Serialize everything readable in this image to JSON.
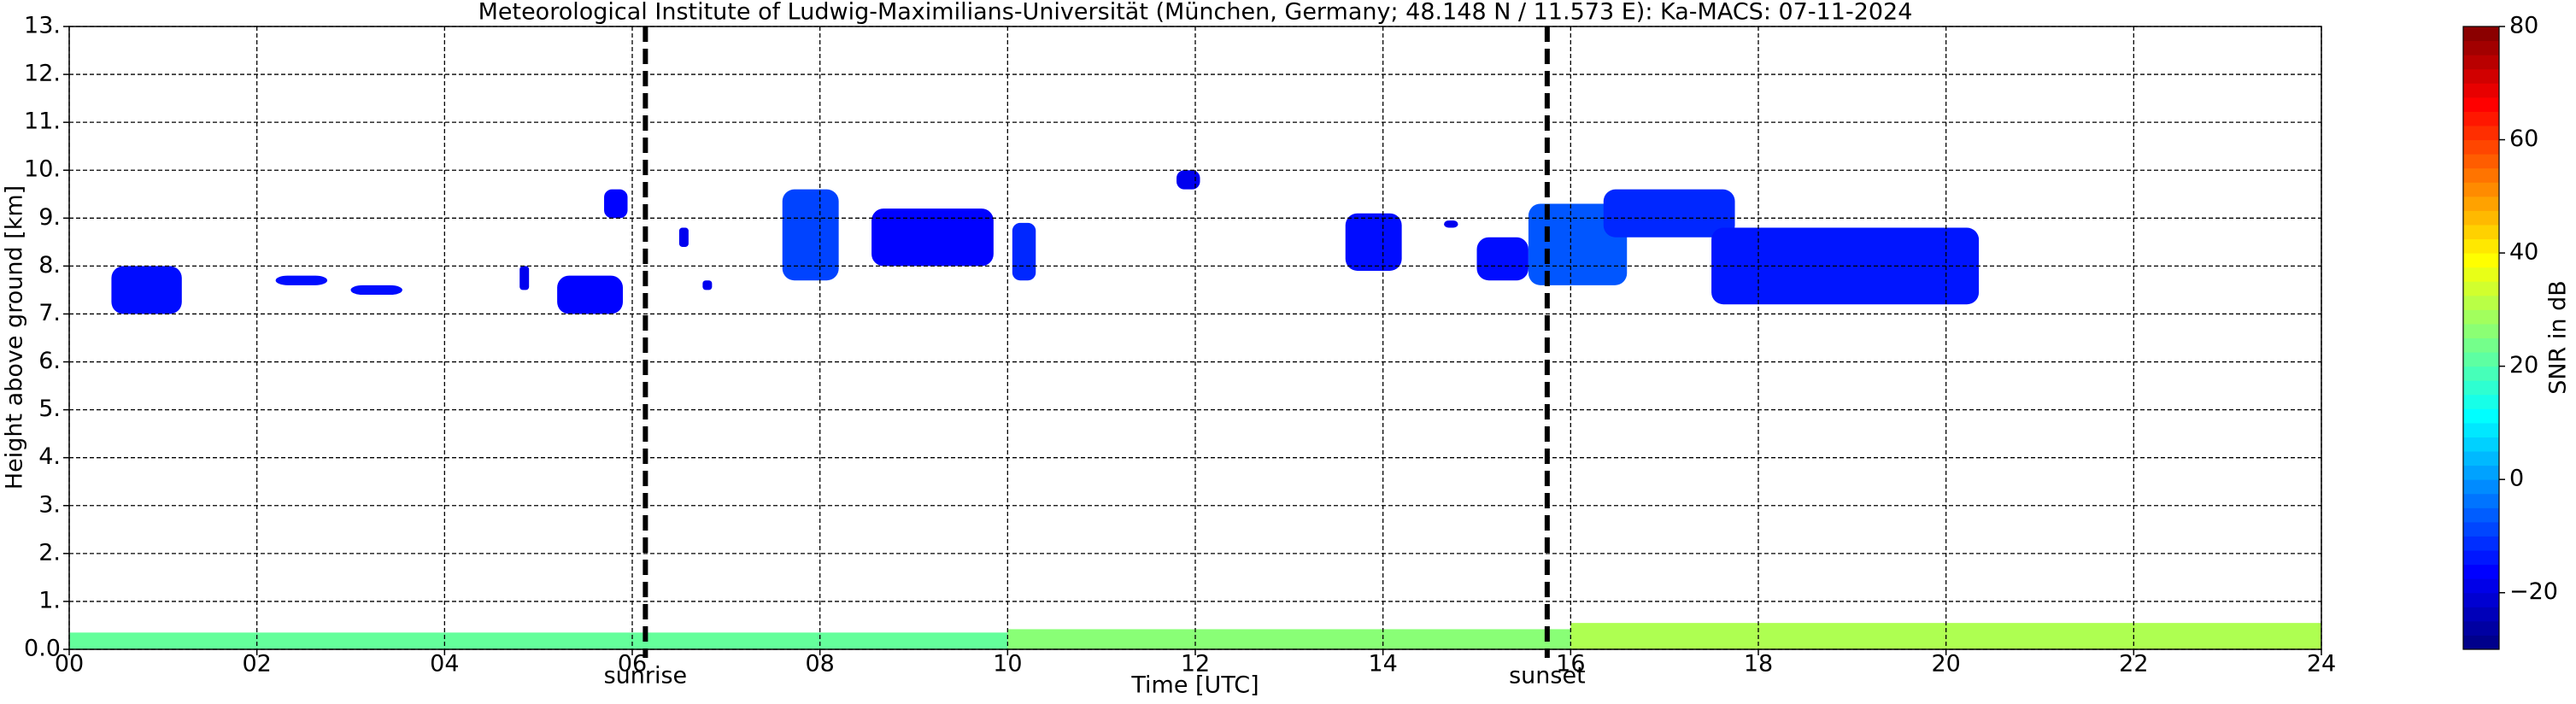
{
  "chart_data": {
    "type": "heatmap",
    "title": "Meteorological Institute of Ludwig-Maximilians-Universität (München, Germany; 48.148 N / 11.573 E):    Ka-MACS: 07-11-2024",
    "xlabel": "Time [UTC]",
    "ylabel": "Height above ground [km]",
    "colorbar_label": "SNR in dB",
    "colormap": "jet",
    "grid": true,
    "xlim": [
      0,
      24
    ],
    "ylim": [
      0,
      13
    ],
    "clim": [
      -30,
      80
    ],
    "xticks": [
      {
        "value": 0,
        "label": "00"
      },
      {
        "value": 2,
        "label": "02"
      },
      {
        "value": 4,
        "label": "04"
      },
      {
        "value": 6,
        "label": "06"
      },
      {
        "value": 8,
        "label": "08"
      },
      {
        "value": 10,
        "label": "10"
      },
      {
        "value": 12,
        "label": "12"
      },
      {
        "value": 14,
        "label": "14"
      },
      {
        "value": 16,
        "label": "16"
      },
      {
        "value": 18,
        "label": "18"
      },
      {
        "value": 20,
        "label": "20"
      },
      {
        "value": 22,
        "label": "22"
      },
      {
        "value": 24,
        "label": "24"
      }
    ],
    "yticks": [
      {
        "value": 0,
        "label": "0.0"
      },
      {
        "value": 1,
        "label": "1."
      },
      {
        "value": 2,
        "label": "2."
      },
      {
        "value": 3,
        "label": "3."
      },
      {
        "value": 4,
        "label": "4."
      },
      {
        "value": 5,
        "label": "5."
      },
      {
        "value": 6,
        "label": "6."
      },
      {
        "value": 7,
        "label": "7."
      },
      {
        "value": 8,
        "label": "8."
      },
      {
        "value": 9,
        "label": "9."
      },
      {
        "value": 10,
        "label": "10."
      },
      {
        "value": 11,
        "label": "11."
      },
      {
        "value": 12,
        "label": "12."
      },
      {
        "value": 13,
        "label": "13."
      }
    ],
    "cticks": [
      {
        "value": -20,
        "label": "−20"
      },
      0,
      20,
      40,
      60,
      80
    ],
    "annotations": [
      {
        "label": "sunrise",
        "x": 6.14
      },
      {
        "label": "sunset",
        "x": 15.75
      }
    ],
    "echoes": [
      {
        "x0": 0.45,
        "x1": 1.2,
        "y0": 7.0,
        "y1": 8.0,
        "snr": -15
      },
      {
        "x0": 2.2,
        "x1": 2.75,
        "y0": 7.6,
        "y1": 7.8,
        "snr": -15
      },
      {
        "x0": 3.0,
        "x1": 3.55,
        "y0": 7.4,
        "y1": 7.6,
        "snr": -15
      },
      {
        "x0": 4.8,
        "x1": 4.9,
        "y0": 7.5,
        "y1": 8.0,
        "snr": -18
      },
      {
        "x0": 5.2,
        "x1": 5.9,
        "y0": 7.0,
        "y1": 7.8,
        "snr": -16
      },
      {
        "x0": 5.7,
        "x1": 5.95,
        "y0": 9.0,
        "y1": 9.6,
        "snr": -16
      },
      {
        "x0": 6.5,
        "x1": 6.6,
        "y0": 8.4,
        "y1": 8.8,
        "snr": -18
      },
      {
        "x0": 6.75,
        "x1": 6.85,
        "y0": 7.5,
        "y1": 7.7,
        "snr": -18
      },
      {
        "x0": 7.6,
        "x1": 8.2,
        "y0": 7.7,
        "y1": 9.6,
        "snr": -9
      },
      {
        "x0": 8.55,
        "x1": 9.85,
        "y0": 8.0,
        "y1": 9.2,
        "snr": -16
      },
      {
        "x0": 10.05,
        "x1": 10.3,
        "y0": 7.7,
        "y1": 8.9,
        "snr": -12
      },
      {
        "x0": 11.8,
        "x1": 12.05,
        "y0": 9.6,
        "y1": 10.0,
        "snr": -18
      },
      {
        "x0": 13.6,
        "x1": 14.2,
        "y0": 7.9,
        "y1": 9.1,
        "snr": -15
      },
      {
        "x0": 14.65,
        "x1": 14.8,
        "y0": 8.8,
        "y1": 8.95,
        "snr": -18
      },
      {
        "x0": 15.0,
        "x1": 15.55,
        "y0": 7.7,
        "y1": 8.6,
        "snr": -15
      },
      {
        "x0": 15.55,
        "x1": 16.6,
        "y0": 7.6,
        "y1": 9.3,
        "snr": -7
      },
      {
        "x0": 16.35,
        "x1": 17.75,
        "y0": 8.6,
        "y1": 9.6,
        "snr": -12
      },
      {
        "x0": 17.5,
        "x1": 20.35,
        "y0": 7.2,
        "y1": 8.8,
        "snr": -14
      },
      {
        "x0": 0,
        "x1": 10,
        "y0": 0,
        "y1": 0.35,
        "snr": 22
      },
      {
        "x0": 10,
        "x1": 16,
        "y0": 0,
        "y1": 0.42,
        "snr": 26
      },
      {
        "x0": 16,
        "x1": 24,
        "y0": 0,
        "y1": 0.55,
        "snr": 30
      }
    ]
  }
}
